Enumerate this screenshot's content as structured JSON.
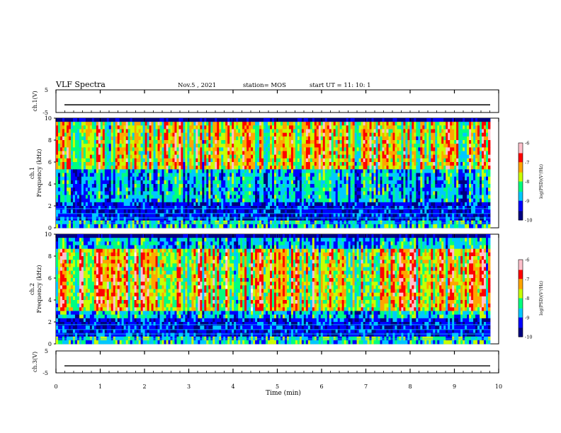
{
  "header": {
    "title": "VLF Spectra",
    "date": "Nov.5 , 2021",
    "station": "station= MOS",
    "start": "start UT = 11: 10: 1"
  },
  "chart_data": [
    {
      "type": "line",
      "panel": "ch1-voltage",
      "ylabel": "ch.1(V)",
      "ylim": [
        -5,
        5
      ],
      "yticks": [
        "5",
        "-5"
      ],
      "xlim": [
        0,
        10
      ],
      "trace_level": -1.6
    },
    {
      "type": "heatmap",
      "panel": "ch1-spectrogram",
      "ylabel": "ch.1\nFrequency (kHz)",
      "ylim": [
        0,
        10
      ],
      "yticks": [
        "0",
        "2",
        "4",
        "6",
        "8",
        "10"
      ],
      "xlim": [
        0,
        9.8
      ],
      "colorbar": {
        "label": "log(PSD)(V²/Hz)",
        "range": [
          -10,
          -6
        ],
        "ticks": [
          "-6",
          "-7",
          "-8",
          "-9",
          "-10"
        ]
      },
      "colormap": [
        "#000080",
        "#0000ff",
        "#00c8ff",
        "#00ff7f",
        "#c8ff00",
        "#ffa500",
        "#ff0000",
        "#ffc0cb",
        "#ffffff"
      ]
    },
    {
      "type": "heatmap",
      "panel": "ch2-spectrogram",
      "ylabel": "ch.2\nFrequency (kHz)",
      "ylim": [
        0,
        10
      ],
      "yticks": [
        "0",
        "2",
        "4",
        "6",
        "8",
        "10"
      ],
      "xlim": [
        0,
        9.8
      ],
      "colorbar": {
        "label": "log(PSD)(V²/Hz)",
        "range": [
          -10,
          -6
        ],
        "ticks": [
          "-6",
          "-7",
          "-8",
          "-9",
          "-10"
        ]
      },
      "colormap": [
        "#000080",
        "#0000ff",
        "#00c8ff",
        "#00ff7f",
        "#c8ff00",
        "#ffa500",
        "#ff0000",
        "#ffc0cb",
        "#ffffff"
      ]
    },
    {
      "type": "line",
      "panel": "ch3-voltage",
      "ylabel": "ch.3(V)",
      "ylim": [
        -5,
        5
      ],
      "yticks": [
        "5",
        "-5"
      ],
      "xlim": [
        0,
        10
      ],
      "trace_level": -1.8
    }
  ],
  "xaxis": {
    "label": "Time (min)",
    "ticks": [
      "0",
      "1",
      "2",
      "3",
      "4",
      "5",
      "6",
      "7",
      "8",
      "9",
      "10"
    ]
  }
}
